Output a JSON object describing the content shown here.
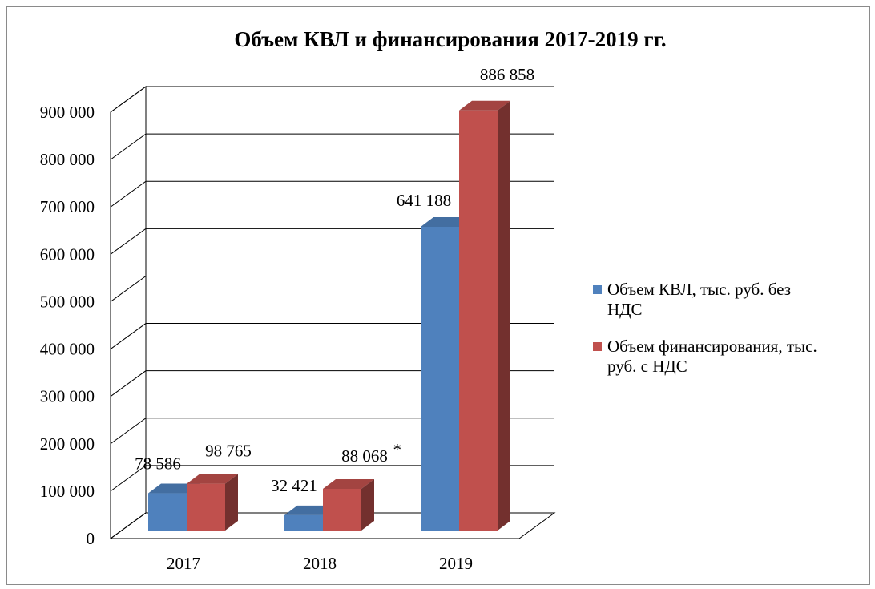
{
  "chart_data": {
    "type": "bar",
    "style": "3d-clustered-column",
    "title": "Объем КВЛ и финансирования  2017-2019 гг.",
    "categories": [
      "2017",
      "2018",
      "2019"
    ],
    "ylim": [
      0,
      900000
    ],
    "yticks": [
      0,
      100000,
      200000,
      300000,
      400000,
      500000,
      600000,
      700000,
      800000,
      900000
    ],
    "ytick_labels": [
      "0",
      "100 000",
      "200 000",
      "300 000",
      "400 000",
      "500 000",
      "600 000",
      "700 000",
      "800 000",
      "900 000"
    ],
    "grid": true,
    "legend_position": "right",
    "series": [
      {
        "name": "Объем КВЛ, тыс. руб. без НДС",
        "color": "#4F81BD",
        "values": [
          78586,
          32421,
          641188
        ],
        "labels": [
          "78 586",
          "32 421",
          "641 188"
        ]
      },
      {
        "name": "Объем финансирования, тыс. руб. с НДС",
        "color": "#C0504D",
        "values": [
          98765,
          88068,
          886858
        ],
        "labels": [
          "98 765",
          "88 068",
          "886 858"
        ]
      }
    ],
    "legend_lines": [
      [
        "Объем КВЛ, тыс. руб. без",
        "НДС"
      ],
      [
        "Объем финансирования, тыс.",
        "руб. с НДС"
      ]
    ],
    "annotations": [
      {
        "text": "*",
        "series": 1,
        "category": 1
      }
    ]
  }
}
